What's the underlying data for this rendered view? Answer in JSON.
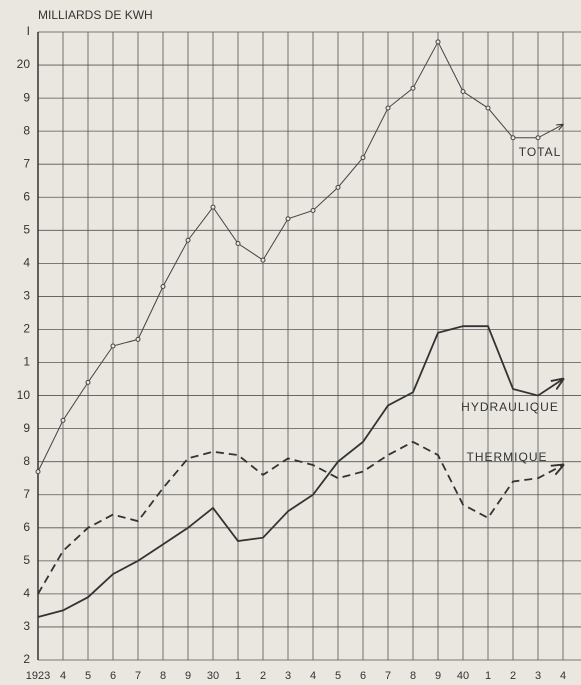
{
  "chart_data": {
    "type": "line",
    "y_axis_label": "MILLIARDS DE KWH",
    "categories": [
      "1923",
      "4",
      "5",
      "6",
      "7",
      "8",
      "9",
      "30",
      "1",
      "2",
      "3",
      "4",
      "5",
      "6",
      "7",
      "8",
      "9",
      "40",
      "1",
      "2",
      "3",
      "4"
    ],
    "series": [
      {
        "name": "TOTAL",
        "color": "#444",
        "line_style": "solid",
        "markers": true,
        "values": [
          7.7,
          9.25,
          10.4,
          11.5,
          11.7,
          13.3,
          14.7,
          15.7,
          14.6,
          14.1,
          15.35,
          15.6,
          16.3,
          17.2,
          18.7,
          19.3,
          20.7,
          19.2,
          18.7,
          17.8,
          17.8,
          18.2
        ]
      },
      {
        "name": "HYDRAULIQUE",
        "color": "#333",
        "line_style": "solid",
        "markers": false,
        "values": [
          3.3,
          3.5,
          3.9,
          4.6,
          5.0,
          5.5,
          6.0,
          6.6,
          5.6,
          5.7,
          6.5,
          7.0,
          8.0,
          8.6,
          9.7,
          10.1,
          11.9,
          12.1,
          12.1,
          10.2,
          10.0,
          10.5
        ]
      },
      {
        "name": "THERMIQUE",
        "color": "#333",
        "line_style": "dashed",
        "markers": false,
        "values": [
          4.0,
          5.3,
          6.0,
          6.4,
          6.2,
          7.2,
          8.1,
          8.3,
          8.2,
          7.6,
          8.1,
          7.9,
          7.5,
          7.7,
          8.2,
          8.6,
          8.2,
          6.7,
          6.3,
          7.4,
          7.5,
          7.9
        ]
      }
    ],
    "ylim": [
      2,
      21
    ],
    "yticks": [
      2,
      3,
      4,
      5,
      6,
      7,
      8,
      9,
      10,
      {
        "value": 11,
        "label": "1"
      },
      {
        "value": 12,
        "label": "2"
      },
      {
        "value": 13,
        "label": "3"
      },
      {
        "value": 14,
        "label": "4"
      },
      {
        "value": 15,
        "label": "5"
      },
      {
        "value": 16,
        "label": "6"
      },
      {
        "value": 17,
        "label": "7"
      },
      {
        "value": 18,
        "label": "8"
      },
      {
        "value": 19,
        "label": "9"
      },
      20,
      {
        "value": 21,
        "label": "I"
      }
    ],
    "grid": true
  }
}
